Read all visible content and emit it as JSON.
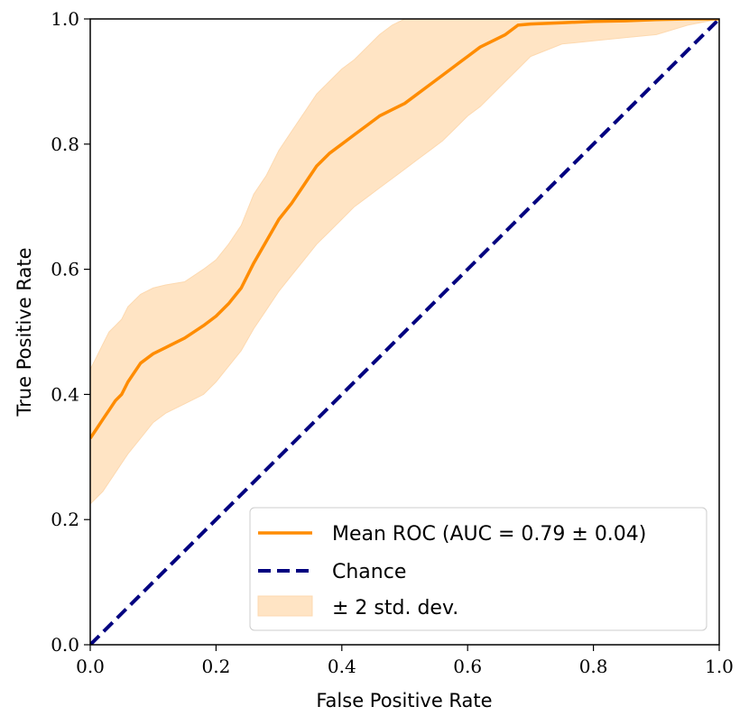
{
  "chart_data": {
    "type": "line",
    "title": "",
    "xlabel": "False Positive Rate",
    "ylabel": "True Positive Rate",
    "xlim": [
      0.0,
      1.0
    ],
    "ylim": [
      0.0,
      1.0
    ],
    "x_ticks": [
      "0.0",
      "0.2",
      "0.4",
      "0.6",
      "0.8",
      "1.0"
    ],
    "y_ticks": [
      "0.0",
      "0.2",
      "0.4",
      "0.6",
      "0.8",
      "1.0"
    ],
    "grid": false,
    "legend_position": "lower-right",
    "series": [
      {
        "name": "Mean ROC (AUC = 0.79 ± 0.04)",
        "style": "solid",
        "color": "#ff8c00",
        "x": [
          0.0,
          0.01,
          0.02,
          0.03,
          0.04,
          0.05,
          0.06,
          0.08,
          0.1,
          0.12,
          0.15,
          0.18,
          0.2,
          0.22,
          0.24,
          0.26,
          0.28,
          0.3,
          0.32,
          0.34,
          0.36,
          0.38,
          0.4,
          0.42,
          0.44,
          0.46,
          0.48,
          0.5,
          0.52,
          0.54,
          0.56,
          0.58,
          0.6,
          0.62,
          0.64,
          0.66,
          0.68,
          0.7,
          0.75,
          0.8,
          0.85,
          0.9,
          0.95,
          1.0
        ],
        "y": [
          0.33,
          0.345,
          0.36,
          0.375,
          0.39,
          0.4,
          0.42,
          0.45,
          0.465,
          0.475,
          0.49,
          0.51,
          0.525,
          0.545,
          0.57,
          0.61,
          0.645,
          0.68,
          0.705,
          0.735,
          0.765,
          0.785,
          0.8,
          0.815,
          0.83,
          0.845,
          0.855,
          0.865,
          0.88,
          0.895,
          0.91,
          0.925,
          0.94,
          0.955,
          0.965,
          0.975,
          0.99,
          0.992,
          0.994,
          0.996,
          0.997,
          0.999,
          1.0,
          1.0
        ]
      },
      {
        "name": "Chance",
        "style": "dashed",
        "color": "#000080",
        "x": [
          0.0,
          1.0
        ],
        "y": [
          0.0,
          1.0
        ]
      }
    ],
    "band": {
      "name": "± 2 std. dev.",
      "color": "#ffe4c4",
      "edge_color": "#fdd9b0",
      "x": [
        0.0,
        0.01,
        0.02,
        0.03,
        0.04,
        0.05,
        0.06,
        0.08,
        0.1,
        0.12,
        0.15,
        0.18,
        0.2,
        0.22,
        0.24,
        0.26,
        0.28,
        0.3,
        0.32,
        0.34,
        0.36,
        0.38,
        0.4,
        0.42,
        0.44,
        0.46,
        0.48,
        0.5,
        0.52,
        0.54,
        0.56,
        0.58,
        0.6,
        0.62,
        0.64,
        0.66,
        0.68,
        0.7,
        0.75,
        0.8,
        0.85,
        0.9,
        0.95,
        1.0
      ],
      "upper": [
        0.44,
        0.46,
        0.48,
        0.5,
        0.51,
        0.52,
        0.54,
        0.56,
        0.57,
        0.575,
        0.58,
        0.6,
        0.615,
        0.64,
        0.67,
        0.72,
        0.75,
        0.79,
        0.82,
        0.85,
        0.88,
        0.9,
        0.92,
        0.935,
        0.955,
        0.975,
        0.99,
        1.0,
        1.0,
        1.0,
        1.0,
        1.0,
        1.0,
        1.0,
        1.0,
        1.0,
        1.0,
        1.0,
        1.0,
        1.0,
        1.0,
        1.0,
        1.0,
        1.0
      ],
      "lower": [
        0.225,
        0.235,
        0.245,
        0.26,
        0.275,
        0.29,
        0.305,
        0.33,
        0.355,
        0.37,
        0.385,
        0.4,
        0.42,
        0.445,
        0.47,
        0.505,
        0.535,
        0.565,
        0.59,
        0.615,
        0.64,
        0.66,
        0.68,
        0.7,
        0.715,
        0.73,
        0.745,
        0.76,
        0.775,
        0.79,
        0.805,
        0.825,
        0.845,
        0.86,
        0.88,
        0.9,
        0.92,
        0.94,
        0.96,
        0.965,
        0.97,
        0.975,
        0.99,
        1.0
      ]
    }
  }
}
